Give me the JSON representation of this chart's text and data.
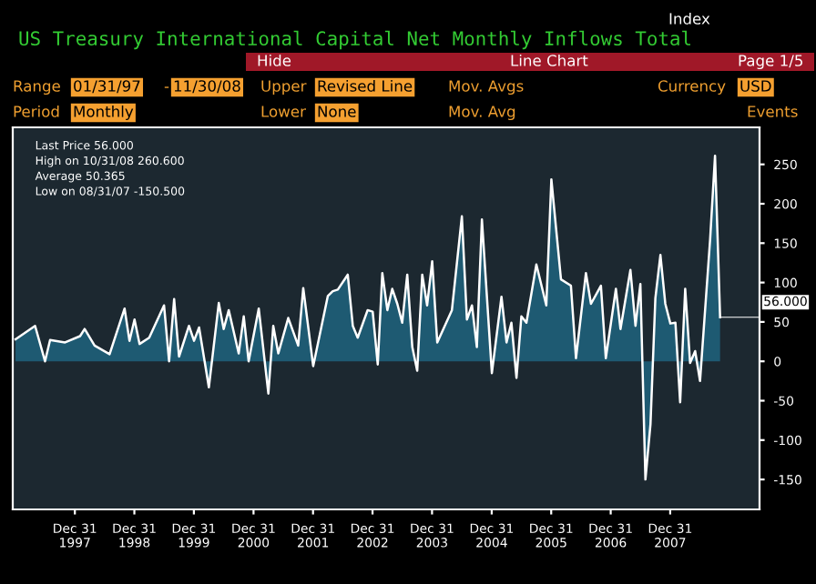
{
  "chart_data": {
    "type": "area",
    "title": "US Treasury International Capital Net Monthly Inflows Total",
    "x": [
      "1997-01",
      "1997-05",
      "1997-07",
      "1997-08",
      "1997-11",
      "1998-02",
      "1998-03",
      "1998-05",
      "1998-08",
      "1998-11",
      "1998-12",
      "1999-01",
      "1999-02",
      "1999-04",
      "1999-07",
      "1999-08",
      "1999-09",
      "1999-10",
      "1999-12",
      "2000-01",
      "2000-02",
      "2000-04",
      "2000-06",
      "2000-07",
      "2000-08",
      "2000-10",
      "2000-11",
      "2000-12",
      "2001-02",
      "2001-04",
      "2001-05",
      "2001-06",
      "2001-08",
      "2001-10",
      "2001-11",
      "2002-01",
      "2002-04",
      "2002-05",
      "2002-06",
      "2002-08",
      "2002-09",
      "2002-10",
      "2002-12",
      "2003-01",
      "2003-02",
      "2003-03",
      "2003-04",
      "2003-05",
      "2003-06",
      "2003-07",
      "2003-08",
      "2003-09",
      "2003-10",
      "2003-11",
      "2003-12",
      "2004-01",
      "2004-02",
      "2004-05",
      "2004-07",
      "2004-08",
      "2004-09",
      "2004-10",
      "2004-11",
      "2005-01",
      "2005-03",
      "2005-04",
      "2005-05",
      "2005-06",
      "2005-07",
      "2005-08",
      "2005-10",
      "2005-12",
      "2006-01",
      "2006-03",
      "2006-05",
      "2006-06",
      "2006-08",
      "2006-09",
      "2006-11",
      "2006-12",
      "2007-02",
      "2007-03",
      "2007-05",
      "2007-06",
      "2007-07",
      "2007-08",
      "2007-09",
      "2007-10",
      "2007-11",
      "2007-12",
      "2008-01",
      "2008-02",
      "2008-03",
      "2008-04",
      "2008-05",
      "2008-06",
      "2008-07",
      "2008-09",
      "2008-10",
      "2008-11"
    ],
    "series": [
      {
        "color": "#1f5f7a",
        "values": [
          28,
          45,
          0,
          27,
          24,
          32,
          41,
          20,
          9,
          67,
          26,
          53,
          22,
          30,
          71,
          0,
          79,
          6,
          45,
          26,
          43,
          -33,
          74,
          41,
          65,
          10,
          57,
          0,
          67,
          -41,
          45,
          10,
          55,
          20,
          93,
          -6,
          83,
          89,
          91,
          110,
          45,
          30,
          65,
          63,
          -4,
          112,
          65,
          92,
          73,
          49,
          110,
          18,
          -12,
          110,
          71,
          127,
          24,
          65,
          184,
          53,
          71,
          18,
          180,
          -15,
          82,
          24,
          49,
          -21,
          57,
          49,
          123,
          71,
          231,
          104,
          96,
          4,
          112,
          73,
          96,
          4,
          92,
          41,
          116,
          45,
          98,
          -150,
          -80,
          80,
          135,
          73,
          48,
          49,
          -52,
          92,
          -2,
          13,
          -25,
          155,
          261,
          56
        ]
      }
    ],
    "xlim": [
      "1996-12-15",
      "2009-07-01"
    ],
    "xticks": [
      {
        "value": "1997-12-31",
        "label": "Dec 31\n1997"
      },
      {
        "value": "1998-12-31",
        "label": "Dec 31\n1998"
      },
      {
        "value": "1999-12-31",
        "label": "Dec 31\n1999"
      },
      {
        "value": "2000-12-31",
        "label": "Dec 31\n2000"
      },
      {
        "value": "2001-12-31",
        "label": "Dec 31\n2001"
      },
      {
        "value": "2002-12-31",
        "label": "Dec 31\n2002"
      },
      {
        "value": "2003-12-31",
        "label": "Dec 31\n2003"
      },
      {
        "value": "2004-12-31",
        "label": "Dec 31\n2004"
      },
      {
        "value": "2005-12-31",
        "label": "Dec 31\n2005"
      },
      {
        "value": "2006-12-31",
        "label": "Dec 31\n2006"
      },
      {
        "value": "2007-12-31",
        "label": "Dec 31\n2007"
      }
    ],
    "ylim": [
      -188,
      297
    ],
    "yticks": [
      -150,
      -100,
      -50,
      0,
      50,
      100,
      150,
      200,
      250
    ],
    "grid": false,
    "annotations": [
      "Last Price 56.000",
      "High on 10/31/08 260.600",
      "Average 50.365",
      "Low on 08/31/07 -150.500",
      {
        "text": "56.000",
        "x": "2008-11",
        "y": 56
      },
      "Index",
      "Hide",
      "Line Chart",
      "Page 1/5",
      "Range",
      "01/31/97",
      "-",
      "11/30/08",
      "Upper",
      "Revised Line",
      "Mov. Avgs",
      "Currency",
      "USD",
      "Period",
      "Monthly",
      "Lower",
      "None",
      "Mov. Avg",
      "Events"
    ]
  }
}
